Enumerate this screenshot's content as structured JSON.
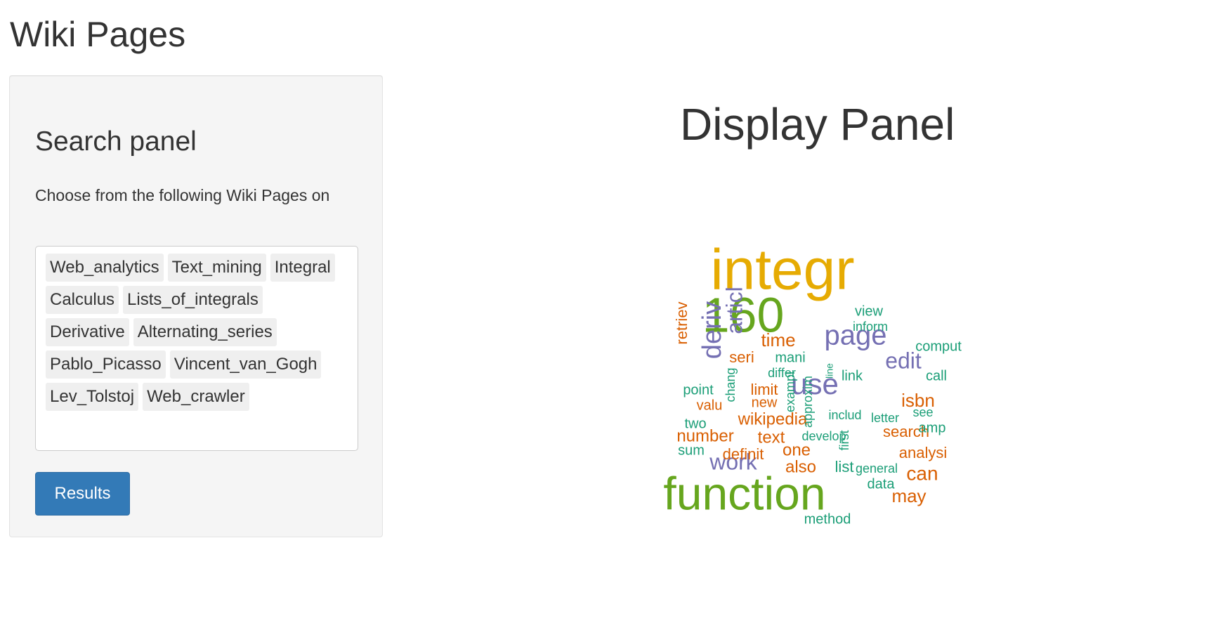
{
  "app": {
    "title": "Wiki Pages"
  },
  "search_panel": {
    "heading": "Search panel",
    "instruction": "Choose from the following Wiki Pages on",
    "selected_pages": [
      "Web_analytics",
      "Text_mining",
      "Integral",
      "Calculus",
      "Lists_of_integrals",
      "Derivative",
      "Alternating_series",
      "Pablo_Picasso",
      "Vincent_van_Gogh",
      "Lev_Tolstoj",
      "Web_crawler"
    ],
    "results_label": "Results"
  },
  "display_panel": {
    "title": "Display Panel"
  },
  "colors": {
    "accent": "#337ab7",
    "cloud_gold": "#e6ab02",
    "cloud_green": "#66a61e",
    "cloud_purple": "#7570b3",
    "cloud_orange": "#d95f02",
    "cloud_teal": "#1b9e77"
  },
  "wordcloud": {
    "words": [
      {
        "text": "integr",
        "color": "cloud_gold",
        "rank": 1
      },
      {
        "text": "160",
        "color": "cloud_green",
        "rank": 2
      },
      {
        "text": "function",
        "color": "cloud_green",
        "rank": 3
      },
      {
        "text": "page",
        "color": "cloud_purple",
        "rank": 4
      },
      {
        "text": "use",
        "color": "cloud_purple",
        "rank": 5
      },
      {
        "text": "deriv",
        "color": "cloud_purple",
        "rank": 6
      },
      {
        "text": "articl",
        "color": "cloud_purple",
        "rank": 7
      },
      {
        "text": "edit",
        "color": "cloud_purple",
        "rank": 8
      },
      {
        "text": "work",
        "color": "cloud_purple",
        "rank": 9
      },
      {
        "text": "time",
        "color": "cloud_orange",
        "rank": 10
      },
      {
        "text": "isbn",
        "color": "cloud_orange",
        "rank": 11
      },
      {
        "text": "can",
        "color": "cloud_orange",
        "rank": 12
      },
      {
        "text": "may",
        "color": "cloud_orange",
        "rank": 13
      },
      {
        "text": "seri",
        "color": "cloud_orange",
        "rank": 14
      },
      {
        "text": "limit",
        "color": "cloud_orange",
        "rank": 15
      },
      {
        "text": "wikipedia",
        "color": "cloud_orange",
        "rank": 16
      },
      {
        "text": "number",
        "color": "cloud_orange",
        "rank": 17
      },
      {
        "text": "text",
        "color": "cloud_orange",
        "rank": 18
      },
      {
        "text": "one",
        "color": "cloud_orange",
        "rank": 19
      },
      {
        "text": "also",
        "color": "cloud_orange",
        "rank": 20
      },
      {
        "text": "analysi",
        "color": "cloud_orange",
        "rank": 21
      },
      {
        "text": "search",
        "color": "cloud_orange",
        "rank": 22
      },
      {
        "text": "retriev",
        "color": "cloud_orange",
        "rank": 23
      },
      {
        "text": "valu",
        "color": "cloud_orange",
        "rank": 24
      },
      {
        "text": "new",
        "color": "cloud_orange",
        "rank": 25
      },
      {
        "text": "definit",
        "color": "cloud_orange",
        "rank": 26
      },
      {
        "text": "view",
        "color": "cloud_teal",
        "rank": 27
      },
      {
        "text": "inform",
        "color": "cloud_teal",
        "rank": 28
      },
      {
        "text": "comput",
        "color": "cloud_teal",
        "rank": 29
      },
      {
        "text": "mani",
        "color": "cloud_teal",
        "rank": 30
      },
      {
        "text": "differ",
        "color": "cloud_teal",
        "rank": 31
      },
      {
        "text": "link",
        "color": "cloud_teal",
        "rank": 32
      },
      {
        "text": "call",
        "color": "cloud_teal",
        "rank": 33
      },
      {
        "text": "point",
        "color": "cloud_teal",
        "rank": 34
      },
      {
        "text": "chang",
        "color": "cloud_teal",
        "rank": 35
      },
      {
        "text": "exampl",
        "color": "cloud_teal",
        "rank": 36
      },
      {
        "text": "approxim",
        "color": "cloud_teal",
        "rank": 37
      },
      {
        "text": "includ",
        "color": "cloud_teal",
        "rank": 38
      },
      {
        "text": "letter",
        "color": "cloud_teal",
        "rank": 39
      },
      {
        "text": "see",
        "color": "cloud_teal",
        "rank": 40
      },
      {
        "text": "two",
        "color": "cloud_teal",
        "rank": 41
      },
      {
        "text": "amp",
        "color": "cloud_teal",
        "rank": 42
      },
      {
        "text": "develop",
        "color": "cloud_teal",
        "rank": 43
      },
      {
        "text": "first",
        "color": "cloud_teal",
        "rank": 44
      },
      {
        "text": "sum",
        "color": "cloud_teal",
        "rank": 45
      },
      {
        "text": "list",
        "color": "cloud_teal",
        "rank": 46
      },
      {
        "text": "general",
        "color": "cloud_teal",
        "rank": 47
      },
      {
        "text": "data",
        "color": "cloud_teal",
        "rank": 48
      },
      {
        "text": "method",
        "color": "cloud_teal",
        "rank": 49
      },
      {
        "text": "line",
        "color": "cloud_teal",
        "rank": 50
      }
    ]
  }
}
